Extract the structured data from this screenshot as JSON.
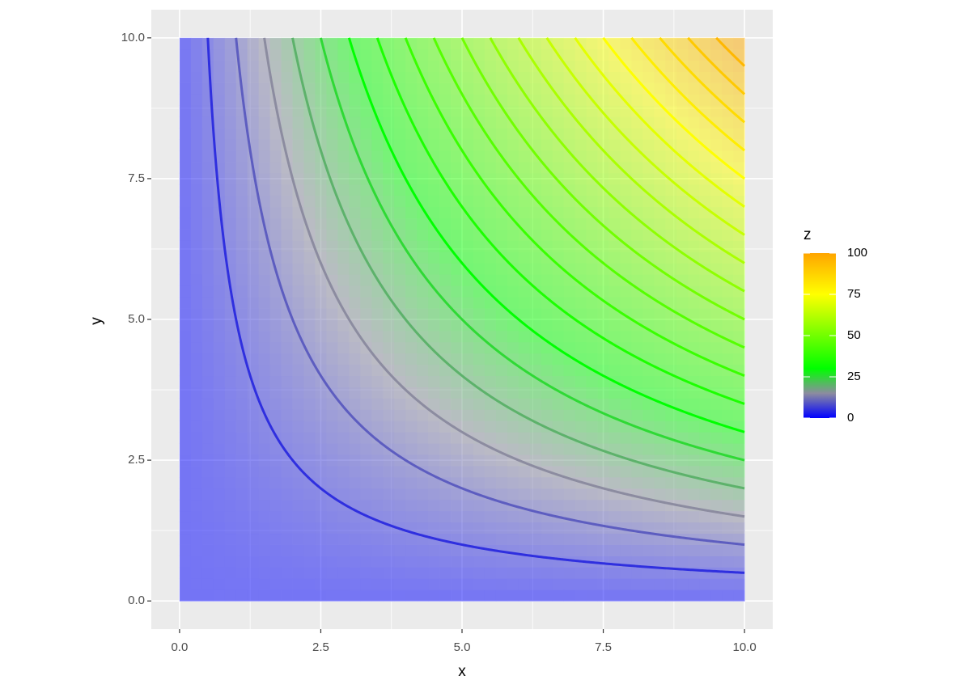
{
  "chart_data": {
    "type": "contour",
    "x_label": "x",
    "y_label": "y",
    "x": [
      0,
      1,
      2,
      3,
      4,
      5,
      6,
      7,
      8,
      9,
      10
    ],
    "y": [
      0,
      1,
      2,
      3,
      4,
      5,
      6,
      7,
      8,
      9,
      10
    ],
    "z": [
      [
        0,
        0,
        0,
        0,
        0,
        0,
        0,
        0,
        0,
        0,
        0
      ],
      [
        0,
        1,
        2,
        3,
        4,
        5,
        6,
        7,
        8,
        9,
        10
      ],
      [
        0,
        2,
        4,
        6,
        8,
        10,
        12,
        14,
        16,
        18,
        20
      ],
      [
        0,
        3,
        6,
        9,
        12,
        15,
        18,
        21,
        24,
        27,
        30
      ],
      [
        0,
        4,
        8,
        12,
        16,
        20,
        24,
        28,
        32,
        36,
        40
      ],
      [
        0,
        5,
        10,
        15,
        20,
        25,
        30,
        35,
        40,
        45,
        50
      ],
      [
        0,
        6,
        12,
        18,
        24,
        30,
        36,
        42,
        48,
        54,
        60
      ],
      [
        0,
        7,
        14,
        21,
        28,
        35,
        42,
        49,
        56,
        63,
        70
      ],
      [
        0,
        8,
        16,
        24,
        32,
        40,
        48,
        56,
        64,
        72,
        80
      ],
      [
        0,
        9,
        18,
        27,
        36,
        45,
        54,
        63,
        72,
        81,
        90
      ],
      [
        0,
        10,
        20,
        30,
        40,
        50,
        60,
        70,
        80,
        90,
        100
      ]
    ],
    "levels": [
      5,
      10,
      15,
      20,
      25,
      30,
      35,
      40,
      45,
      50,
      55,
      60,
      65,
      70,
      75,
      80,
      85,
      90,
      95
    ],
    "xlim": [
      -0.5,
      10.5
    ],
    "ylim": [
      -0.5,
      10.5
    ],
    "xticks": [
      {
        "value": 0,
        "label": "0.0"
      },
      {
        "value": 2.5,
        "label": "2.5"
      },
      {
        "value": 5,
        "label": "5.0"
      },
      {
        "value": 7.5,
        "label": "7.5"
      },
      {
        "value": 10,
        "label": "10.0"
      }
    ],
    "yticks": [
      {
        "value": 0,
        "label": "0.0"
      },
      {
        "value": 2.5,
        "label": "2.5"
      },
      {
        "value": 5,
        "label": "5.0"
      },
      {
        "value": 7.5,
        "label": "7.5"
      },
      {
        "value": 10,
        "label": "10.0"
      }
    ],
    "colorscale": [
      {
        "value": 0,
        "color": "#0000ff"
      },
      {
        "value": 15,
        "color": "#8c8ca0"
      },
      {
        "value": 30,
        "color": "#00ff00"
      },
      {
        "value": 75,
        "color": "#ffff00"
      },
      {
        "value": 100,
        "color": "#ffa500"
      }
    ],
    "fill_alpha": 0.5,
    "grid": true,
    "legend": {
      "title": "z",
      "limits": [
        0,
        100
      ],
      "ticks": [
        0,
        25,
        50,
        75,
        100
      ]
    }
  }
}
